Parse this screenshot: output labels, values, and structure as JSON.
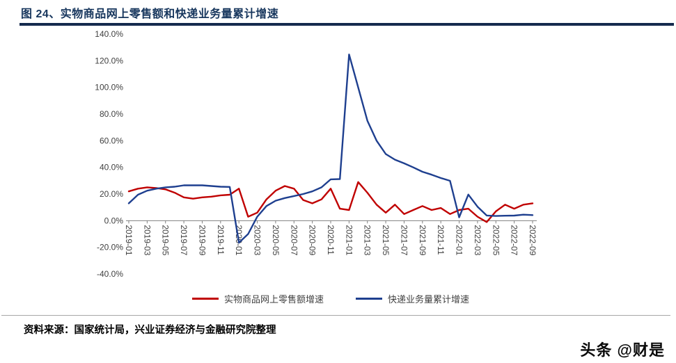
{
  "header": {
    "title": "图 24、实物商品网上零售额和快递业务量累计增速"
  },
  "colors": {
    "title_text": "#17365d",
    "title_rule": "#152a4e",
    "axis_text": "#404040",
    "axis_line": "#808080",
    "divider": "#a6a6a6",
    "red_series": "#c00000",
    "blue_series": "#1e3f8f"
  },
  "chart_data": {
    "type": "line",
    "title": "",
    "xlabel": "",
    "ylabel": "",
    "x": [
      "2019-01",
      "2019-02",
      "2019-03",
      "2019-04",
      "2019-05",
      "2019-06",
      "2019-07",
      "2019-08",
      "2019-09",
      "2019-10",
      "2019-11",
      "2019-12",
      "2020-01",
      "2020-02",
      "2020-03",
      "2020-04",
      "2020-05",
      "2020-06",
      "2020-07",
      "2020-08",
      "2020-09",
      "2020-10",
      "2020-11",
      "2020-12",
      "2021-01",
      "2021-02",
      "2021-03",
      "2021-04",
      "2021-05",
      "2021-06",
      "2021-07",
      "2021-08",
      "2021-09",
      "2021-10",
      "2021-11",
      "2021-12",
      "2022-01",
      "2022-02",
      "2022-03",
      "2022-04",
      "2022-05",
      "2022-06",
      "2022-07",
      "2022-08",
      "2022-09"
    ],
    "x_tick_every": 2,
    "series": [
      {
        "id": "online-retail",
        "name": "实物商品网上零售额增速",
        "color": "#c00000",
        "values": [
          22,
          24,
          25,
          24.5,
          23.5,
          21,
          17.5,
          16.5,
          17.5,
          18,
          19,
          19.5,
          24,
          3,
          6,
          16,
          22.5,
          26,
          24,
          15.5,
          13,
          16,
          24,
          9,
          8,
          29,
          21,
          12,
          6,
          12,
          5,
          8,
          11,
          8,
          9.5,
          5,
          8,
          9,
          3,
          -1,
          7,
          12,
          9,
          12,
          13
        ]
      },
      {
        "id": "express",
        "name": "快递业务量累计增速",
        "color": "#1e3f8f",
        "values": [
          13,
          19.5,
          22.5,
          24,
          25,
          25.5,
          26.5,
          26.5,
          26.5,
          26,
          25.5,
          25.3,
          -16.5,
          -10,
          3,
          11,
          15,
          17,
          18.5,
          20,
          22,
          25,
          31,
          31.2,
          124.7,
          100,
          75,
          60,
          50,
          45.8,
          43,
          40,
          36.7,
          34.5,
          32,
          29.9,
          2.5,
          19.6,
          10.5,
          3.9,
          3.5,
          3.7,
          3.8,
          4.5,
          4.2
        ]
      }
    ],
    "ylim": [
      -40,
      140
    ],
    "y_tick_step": 20,
    "y_tick_suffix": "%",
    "grid": false,
    "legend_position": "bottom"
  },
  "footer": {
    "source": "资料来源：国家统计局，兴业证券经济与金融研究院整理"
  },
  "watermark": {
    "text": "头条 @财是"
  }
}
